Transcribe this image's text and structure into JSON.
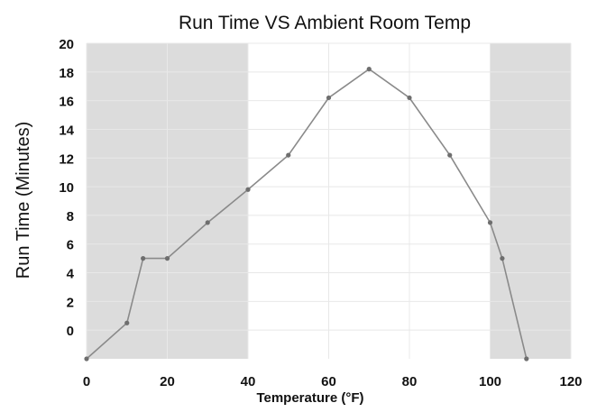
{
  "chart_data": {
    "type": "line",
    "title": "Run Time VS Ambient Room Temp",
    "xlabel": "Temperature (°F)",
    "ylabel": "Run Time (Minutes)",
    "xlim": [
      0,
      120
    ],
    "ylim": [
      -2,
      20
    ],
    "x_ticks": [
      0,
      20,
      40,
      60,
      80,
      100,
      120
    ],
    "y_ticks": [
      0,
      2,
      4,
      6,
      8,
      10,
      12,
      14,
      16,
      18,
      20
    ],
    "shaded_ranges": [
      [
        0,
        40
      ],
      [
        100,
        120
      ]
    ],
    "grid": true,
    "band_color": "#dcdcdc",
    "line_color": "#8a8a8a",
    "marker_color": "#6e6e6e",
    "series": [
      {
        "x": [
          0,
          10,
          14,
          20,
          30,
          40,
          50,
          60,
          70,
          80,
          90,
          100,
          103,
          109
        ],
        "y": [
          -2,
          0.5,
          5,
          5,
          7.5,
          9.8,
          12.2,
          16.2,
          18.2,
          16.2,
          12.2,
          7.5,
          5,
          -2
        ]
      }
    ]
  }
}
